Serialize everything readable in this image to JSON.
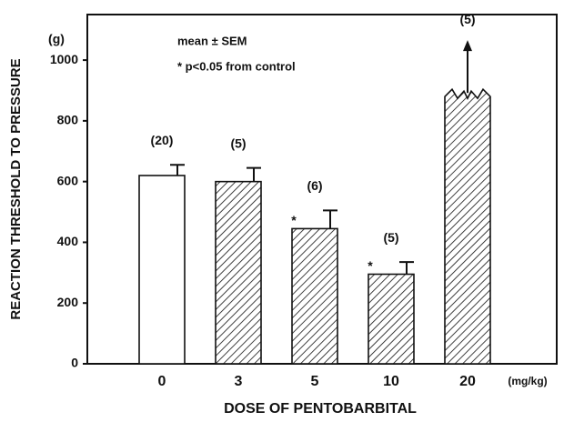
{
  "chart_data": {
    "type": "bar",
    "y_label": "REACTION THRESHOLD TO PRESSURE",
    "y_unit": "(g)",
    "x_label": "DOSE OF PENTOBARBITAL",
    "x_unit": "(mg/kg)",
    "legend_lines": [
      "mean ± SEM",
      "* p<0.05 from control"
    ],
    "categories": [
      "0",
      "3",
      "5",
      "10",
      "20"
    ],
    "values": [
      620,
      600,
      445,
      295,
      880
    ],
    "errors": [
      35,
      45,
      60,
      40,
      null
    ],
    "n_labels": [
      "(20)",
      "(5)",
      "(6)",
      "(5)",
      "(5)"
    ],
    "significance": [
      null,
      null,
      "*",
      "*",
      null
    ],
    "fills": [
      "none",
      "hatch",
      "hatch",
      "hatch",
      "hatch"
    ],
    "broken": [
      false,
      false,
      false,
      false,
      true
    ],
    "color": "#111111",
    "ylim": [
      0,
      1150
    ],
    "yticks": [
      0,
      200,
      400,
      600,
      800,
      1000
    ]
  }
}
